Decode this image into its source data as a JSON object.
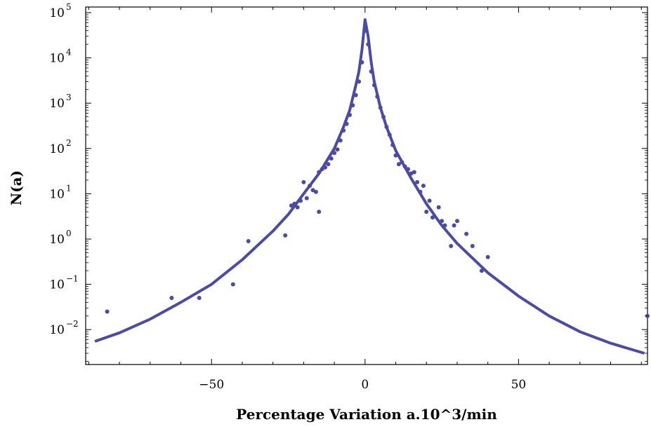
{
  "chart_data": {
    "type": "scatter",
    "title": "",
    "xlabel": "Percentage Variation a.10^3/min",
    "ylabel": "N(a)",
    "xlim": [
      -91,
      92
    ],
    "ylim": [
      0.002,
      100000
    ],
    "yscale": "log",
    "grid": false,
    "legend": "none",
    "x_ticks": [
      {
        "value": -50,
        "label": "−50"
      },
      {
        "value": 0,
        "label": "0"
      },
      {
        "value": 50,
        "label": "50"
      }
    ],
    "y_ticks": [
      {
        "value": 0.01,
        "base": "10",
        "exp": "−2"
      },
      {
        "value": 0.1,
        "base": "10",
        "exp": "−1"
      },
      {
        "value": 1,
        "base": "10",
        "exp": "0"
      },
      {
        "value": 10,
        "base": "10",
        "exp": "1"
      },
      {
        "value": 100,
        "base": "10",
        "exp": "2"
      },
      {
        "value": 1000,
        "base": "10",
        "exp": "3"
      },
      {
        "value": 10000,
        "base": "10",
        "exp": "4"
      },
      {
        "value": 100000,
        "base": "10",
        "exp": "5"
      }
    ],
    "colors": {
      "series": "#4b4ba6",
      "axes": "#000000"
    },
    "series": [
      {
        "kind": "points",
        "points": [
          [
            -84,
            0.025
          ],
          [
            -63,
            0.05
          ],
          [
            -54,
            0.05
          ],
          [
            -43,
            0.1
          ],
          [
            -38,
            0.9
          ],
          [
            -26,
            1.2
          ],
          [
            -24,
            5.5
          ],
          [
            -23,
            6
          ],
          [
            -22,
            5
          ],
          [
            -21,
            7
          ],
          [
            -20,
            18
          ],
          [
            -19,
            8
          ],
          [
            -18,
            15
          ],
          [
            -17,
            12
          ],
          [
            -16,
            11
          ],
          [
            -15,
            4
          ],
          [
            -15,
            30
          ],
          [
            -14,
            35
          ],
          [
            -13,
            38
          ],
          [
            -12,
            45
          ],
          [
            -11,
            60
          ],
          [
            -10,
            80
          ],
          [
            -9,
            95
          ],
          [
            -8,
            150
          ],
          [
            -7,
            250
          ],
          [
            -6,
            350
          ],
          [
            -5,
            550
          ],
          [
            -4,
            900
          ],
          [
            -3,
            1500
          ],
          [
            -2,
            3000
          ],
          [
            -1,
            8000
          ],
          [
            0,
            40000
          ],
          [
            1,
            20000
          ],
          [
            2,
            5000
          ],
          [
            3,
            2500
          ],
          [
            4,
            1400
          ],
          [
            5,
            800
          ],
          [
            6,
            500
          ],
          [
            7,
            300
          ],
          [
            8,
            200
          ],
          [
            9,
            120
          ],
          [
            10,
            70
          ],
          [
            11,
            45
          ],
          [
            12,
            50
          ],
          [
            13,
            40
          ],
          [
            14,
            35
          ],
          [
            15,
            28
          ],
          [
            16,
            30
          ],
          [
            17,
            18
          ],
          [
            18,
            11
          ],
          [
            19,
            15
          ],
          [
            20,
            4
          ],
          [
            21,
            7
          ],
          [
            22,
            3
          ],
          [
            24,
            5
          ],
          [
            25,
            2.5
          ],
          [
            26,
            2
          ],
          [
            28,
            0.7
          ],
          [
            29,
            2
          ],
          [
            30,
            2.5
          ],
          [
            33,
            1.3
          ],
          [
            35,
            0.7
          ],
          [
            38,
            0.2
          ],
          [
            40,
            0.4
          ],
          [
            92,
            0.02
          ]
        ]
      },
      {
        "kind": "fit-line",
        "points": [
          [
            -88,
            0.0055
          ],
          [
            -80,
            0.0085
          ],
          [
            -70,
            0.017
          ],
          [
            -60,
            0.04
          ],
          [
            -50,
            0.1
          ],
          [
            -40,
            0.35
          ],
          [
            -30,
            1.5
          ],
          [
            -25,
            3.5
          ],
          [
            -20,
            10
          ],
          [
            -15,
            28
          ],
          [
            -10,
            100
          ],
          [
            -7,
            300
          ],
          [
            -5,
            700
          ],
          [
            -3,
            2500
          ],
          [
            -2,
            5000
          ],
          [
            -1,
            15000
          ],
          [
            0,
            70000
          ],
          [
            1,
            30000
          ],
          [
            2,
            8000
          ],
          [
            3,
            3000
          ],
          [
            5,
            800
          ],
          [
            7,
            300
          ],
          [
            10,
            90
          ],
          [
            15,
            22
          ],
          [
            20,
            6
          ],
          [
            25,
            2
          ],
          [
            30,
            0.8
          ],
          [
            40,
            0.18
          ],
          [
            50,
            0.055
          ],
          [
            60,
            0.02
          ],
          [
            70,
            0.009
          ],
          [
            80,
            0.005
          ],
          [
            91,
            0.003
          ]
        ]
      }
    ]
  }
}
